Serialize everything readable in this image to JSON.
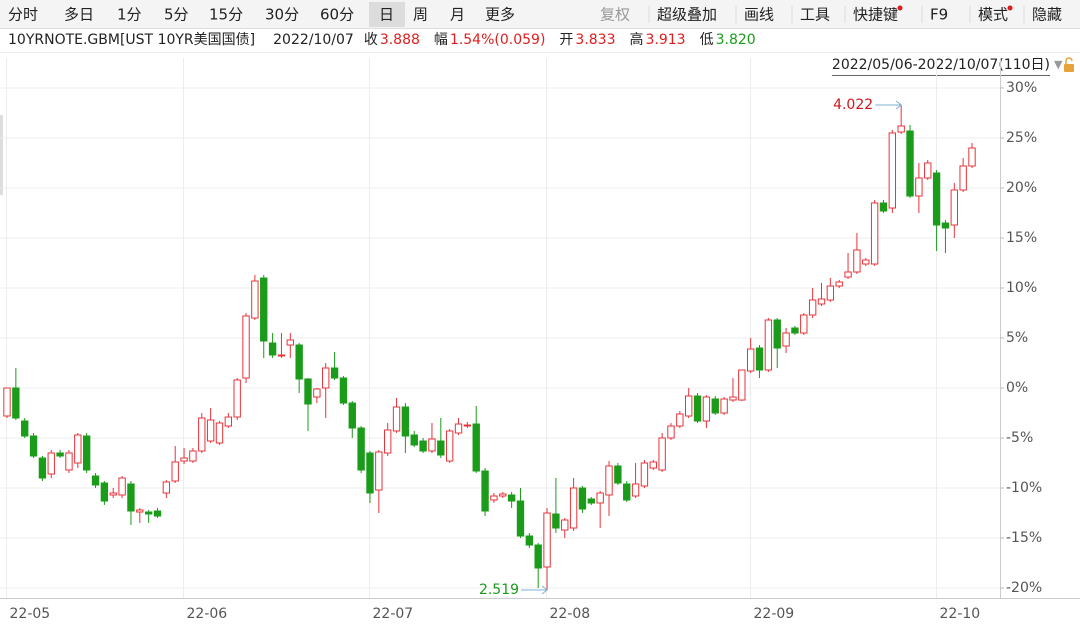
{
  "toolbar": {
    "periods": [
      "分时",
      "多日",
      "1分",
      "5分",
      "15分",
      "30分",
      "60分",
      "日",
      "周",
      "月",
      "更多"
    ],
    "active": 7,
    "tools": [
      {
        "label": "复权",
        "disabled": true
      },
      {
        "label": "超级叠加"
      },
      {
        "label": "画线"
      },
      {
        "label": "工具"
      },
      {
        "label": "快捷键",
        "dot": true
      },
      {
        "label": "F9"
      },
      {
        "label": "模式",
        "dot": true
      },
      {
        "label": "隐藏"
      }
    ]
  },
  "quote": {
    "symbol": "10YRNOTE.GBM[UST 10YR美国国债]",
    "date": "2022/10/07",
    "fields": [
      {
        "label": "收",
        "value": "3.888",
        "color": "#e01d1d"
      },
      {
        "label": "幅",
        "value": "1.54%(0.059)",
        "color": "#e01d1d"
      },
      {
        "label": "开",
        "value": "3.833",
        "color": "#e01d1d"
      },
      {
        "label": "高",
        "value": "3.913",
        "color": "#e01d1d"
      },
      {
        "label": "低",
        "value": "3.820",
        "color": "#1a9c1a"
      }
    ]
  },
  "range": "2022/05/06-2022/10/07(110日)",
  "chart_data": {
    "type": "candlestick",
    "up_color": "#e8333a",
    "down_color": "#1a9c1a",
    "grid": true,
    "ylim": [
      -21,
      31
    ],
    "yticks": [
      {
        "value": 30,
        "label": "30%"
      },
      {
        "value": 25,
        "label": "25%"
      },
      {
        "value": 20,
        "label": "20%"
      },
      {
        "value": 15,
        "label": "15%"
      },
      {
        "value": 10,
        "label": "10%"
      },
      {
        "value": 5,
        "label": "5%"
      },
      {
        "value": 0,
        "label": "0%"
      },
      {
        "value": -5,
        "label": "-5%"
      },
      {
        "value": -10,
        "label": "-10%"
      },
      {
        "value": -15,
        "label": "-15%"
      },
      {
        "value": -20,
        "label": "-20%"
      }
    ],
    "annotations": [
      {
        "text": "4.022",
        "at": "high",
        "color": "#d0161b"
      },
      {
        "text": "2.519",
        "at": "low",
        "color": "#1a9c1a"
      }
    ],
    "categories": [
      "22-05",
      null,
      null,
      null,
      null,
      null,
      null,
      null,
      null,
      null,
      null,
      null,
      null,
      null,
      null,
      null,
      null,
      null,
      null,
      null,
      "22-06",
      null,
      null,
      null,
      null,
      null,
      null,
      null,
      null,
      null,
      null,
      null,
      null,
      null,
      null,
      null,
      null,
      null,
      null,
      null,
      null,
      "22-07",
      null,
      null,
      null,
      null,
      null,
      null,
      null,
      null,
      null,
      null,
      null,
      null,
      null,
      null,
      null,
      null,
      null,
      null,
      null,
      "22-08",
      null,
      null,
      null,
      null,
      null,
      null,
      null,
      null,
      null,
      null,
      null,
      null,
      null,
      null,
      null,
      null,
      null,
      null,
      null,
      null,
      null,
      null,
      "22-09",
      null,
      null,
      null,
      null,
      null,
      null,
      null,
      null,
      null,
      null,
      null,
      null,
      null,
      null,
      null,
      null,
      null,
      null,
      null,
      null,
      "22-10",
      null,
      null,
      null,
      null
    ],
    "candles": [
      {
        "o": -2.8,
        "h": 0,
        "l": -3,
        "c": 0
      },
      {
        "o": 0,
        "h": 2,
        "l": -3.2,
        "c": -3
      },
      {
        "o": -3.3,
        "h": -3,
        "l": -5,
        "c": -4.8
      },
      {
        "o": -4.8,
        "h": -4.5,
        "l": -7,
        "c": -6.8
      },
      {
        "o": -7,
        "h": -6.8,
        "l": -9.3,
        "c": -9
      },
      {
        "o": -8.6,
        "h": -6.2,
        "l": -9,
        "c": -6.5
      },
      {
        "o": -6.5,
        "h": -6.2,
        "l": -7,
        "c": -6.8
      },
      {
        "o": -8.2,
        "h": -6.2,
        "l": -8.5,
        "c": -6.5
      },
      {
        "o": -7.5,
        "h": -4.5,
        "l": -8,
        "c": -4.7
      },
      {
        "o": -4.8,
        "h": -4.5,
        "l": -8.5,
        "c": -8.2
      },
      {
        "o": -8.8,
        "h": -8.5,
        "l": -10,
        "c": -9.7
      },
      {
        "o": -9.5,
        "h": -9.3,
        "l": -11.7,
        "c": -11.3
      },
      {
        "o": -10.7,
        "h": -10,
        "l": -11,
        "c": -10.5
      },
      {
        "o": -10.7,
        "h": -8.8,
        "l": -11,
        "c": -9
      },
      {
        "o": -9.6,
        "h": -9.3,
        "l": -13.7,
        "c": -12.3
      },
      {
        "o": -12.4,
        "h": -12,
        "l": -13.5,
        "c": -12.2
      },
      {
        "o": -12.4,
        "h": -12.2,
        "l": -13.5,
        "c": -12.6
      },
      {
        "o": -12.3,
        "h": -12,
        "l": -13,
        "c": -12.8
      },
      {
        "o": -10.5,
        "h": -9.2,
        "l": -11,
        "c": -9.4
      },
      {
        "o": -9.3,
        "h": -5.8,
        "l": -9.5,
        "c": -7.4
      },
      {
        "o": -7.3,
        "h": -6,
        "l": -7.6,
        "c": -7
      },
      {
        "o": -7.3,
        "h": -6,
        "l": -7.5,
        "c": -6.3
      },
      {
        "o": -6.3,
        "h": -2.5,
        "l": -6.5,
        "c": -3
      },
      {
        "o": -5.3,
        "h": -2,
        "l": -5.5,
        "c": -3.2
      },
      {
        "o": -5.5,
        "h": -3.3,
        "l": -5.7,
        "c": -3.5
      },
      {
        "o": -3.8,
        "h": -2.5,
        "l": -4,
        "c": -2.9
      },
      {
        "o": -2.9,
        "h": 1,
        "l": -3.2,
        "c": 0.8
      },
      {
        "o": 1,
        "h": 7.5,
        "l": 0.5,
        "c": 7.2
      },
      {
        "o": 7,
        "h": 11.3,
        "l": 6.8,
        "c": 10.7
      },
      {
        "o": 11,
        "h": 11.3,
        "l": 3,
        "c": 4.7
      },
      {
        "o": 4.5,
        "h": 5.5,
        "l": 3,
        "c": 3.3
      },
      {
        "o": 3.2,
        "h": 5.5,
        "l": 3,
        "c": 3.3
      },
      {
        "o": 4.3,
        "h": 5.5,
        "l": 3,
        "c": 4.8
      },
      {
        "o": 4.3,
        "h": 4.5,
        "l": -0.5,
        "c": 0.9
      },
      {
        "o": 0.9,
        "h": 1,
        "l": -4.3,
        "c": -1.6
      },
      {
        "o": -0.9,
        "h": 0,
        "l": -1.5,
        "c": -0.1
      },
      {
        "o": 0,
        "h": 2.5,
        "l": -3,
        "c": 2
      },
      {
        "o": 2,
        "h": 3.6,
        "l": 0.8,
        "c": 1
      },
      {
        "o": 1,
        "h": 1.2,
        "l": -1.7,
        "c": -1.5
      },
      {
        "o": -1.5,
        "h": -1.3,
        "l": -5,
        "c": -4
      },
      {
        "o": -4,
        "h": -3.8,
        "l": -8.5,
        "c": -8.2
      },
      {
        "o": -6.5,
        "h": -6.3,
        "l": -11.5,
        "c": -10.5
      },
      {
        "o": -10.2,
        "h": -6.2,
        "l": -12.5,
        "c": -6.4
      },
      {
        "o": -6.5,
        "h": -3.5,
        "l": -6.8,
        "c": -4.2
      },
      {
        "o": -4.3,
        "h": -1,
        "l": -4.5,
        "c": -1.9
      },
      {
        "o": -1.9,
        "h": -1.5,
        "l": -6.5,
        "c": -4.8
      },
      {
        "o": -4.7,
        "h": -4.3,
        "l": -5.9,
        "c": -5.7
      },
      {
        "o": -5.3,
        "h": -5,
        "l": -6.5,
        "c": -6.3
      },
      {
        "o": -6.3,
        "h": -3.5,
        "l": -6.5,
        "c": -5.1
      },
      {
        "o": -5.3,
        "h": -3,
        "l": -7,
        "c": -6.7
      },
      {
        "o": -7.3,
        "h": -4.1,
        "l": -7.5,
        "c": -4.3
      },
      {
        "o": -4.5,
        "h": -3,
        "l": -4.7,
        "c": -3.6
      },
      {
        "o": -3.7,
        "h": -3.4,
        "l": -4,
        "c": -3.7
      },
      {
        "o": -3.6,
        "h": -1.8,
        "l": -8.5,
        "c": -8.3
      },
      {
        "o": -8.3,
        "h": -8,
        "l": -12.8,
        "c": -12.3
      },
      {
        "o": -11.2,
        "h": -10.5,
        "l": -11.5,
        "c": -10.8
      },
      {
        "o": -10.8,
        "h": -10.4,
        "l": -11,
        "c": -10.6
      },
      {
        "o": -10.7,
        "h": -10.4,
        "l": -12,
        "c": -11.3
      },
      {
        "o": -11.3,
        "h": -10,
        "l": -15,
        "c": -14.8
      },
      {
        "o": -14.8,
        "h": -14.5,
        "l": -16,
        "c": -15.7
      },
      {
        "o": -15.7,
        "h": -15.5,
        "l": -20,
        "c": -18
      },
      {
        "o": -17.9,
        "h": -12,
        "l": -20.2,
        "c": -12.5
      },
      {
        "o": -12.6,
        "h": -9,
        "l": -14.5,
        "c": -14
      },
      {
        "o": -14.2,
        "h": -13,
        "l": -15,
        "c": -13.2
      },
      {
        "o": -14,
        "h": -9,
        "l": -14.3,
        "c": -10
      },
      {
        "o": -10,
        "h": -9.8,
        "l": -12.5,
        "c": -12.1
      },
      {
        "o": -11.1,
        "h": -10.9,
        "l": -11.7,
        "c": -11.5
      },
      {
        "o": -11.5,
        "h": -10.3,
        "l": -14,
        "c": -10.5
      },
      {
        "o": -10.7,
        "h": -7.3,
        "l": -12.8,
        "c": -7.8
      },
      {
        "o": -7.8,
        "h": -7.5,
        "l": -9.7,
        "c": -9.5
      },
      {
        "o": -9.6,
        "h": -9.3,
        "l": -11.4,
        "c": -11.2
      },
      {
        "o": -10.8,
        "h": -7.5,
        "l": -11,
        "c": -9.6
      },
      {
        "o": -9.8,
        "h": -7.2,
        "l": -10,
        "c": -7.5
      },
      {
        "o": -8,
        "h": -7.2,
        "l": -8.2,
        "c": -7.4
      },
      {
        "o": -8.2,
        "h": -4.5,
        "l": -8.4,
        "c": -5
      },
      {
        "o": -5,
        "h": -3.5,
        "l": -5.2,
        "c": -3.8
      },
      {
        "o": -3.8,
        "h": -2.3,
        "l": -4,
        "c": -2.6
      },
      {
        "o": -2.8,
        "h": 0,
        "l": -3,
        "c": -0.8
      },
      {
        "o": -0.8,
        "h": -0.5,
        "l": -3.5,
        "c": -3.3
      },
      {
        "o": -3.3,
        "h": -0.7,
        "l": -4,
        "c": -0.9
      },
      {
        "o": -1.1,
        "h": -0.8,
        "l": -2.7,
        "c": -2.5
      },
      {
        "o": -2.5,
        "h": -0.9,
        "l": -2.7,
        "c": -1.1
      },
      {
        "o": -1.2,
        "h": 1,
        "l": -1.4,
        "c": -0.9
      },
      {
        "o": -1.2,
        "h": 1.8,
        "l": -1.3,
        "c": 1.8
      },
      {
        "o": 1.7,
        "h": 5,
        "l": 1.5,
        "c": 3.9
      },
      {
        "o": 4,
        "h": 4.3,
        "l": 1,
        "c": 1.8
      },
      {
        "o": 1.8,
        "h": 7,
        "l": 1.6,
        "c": 6.8
      },
      {
        "o": 6.8,
        "h": 7,
        "l": 2,
        "c": 4
      },
      {
        "o": 4.2,
        "h": 6,
        "l": 3.5,
        "c": 5.5
      },
      {
        "o": 6,
        "h": 6.2,
        "l": 5.3,
        "c": 5.5
      },
      {
        "o": 5.5,
        "h": 7.5,
        "l": 5.3,
        "c": 7.3
      },
      {
        "o": 7.3,
        "h": 10,
        "l": 7,
        "c": 8.8
      },
      {
        "o": 8.4,
        "h": 10.5,
        "l": 8.2,
        "c": 8.9
      },
      {
        "o": 8.8,
        "h": 11,
        "l": 8.6,
        "c": 10.2
      },
      {
        "o": 10.2,
        "h": 10.8,
        "l": 10,
        "c": 10.6
      },
      {
        "o": 11.1,
        "h": 13.5,
        "l": 10.9,
        "c": 11.6
      },
      {
        "o": 11.6,
        "h": 15.5,
        "l": 11.4,
        "c": 13.8
      },
      {
        "o": 12.4,
        "h": 13,
        "l": 12.2,
        "c": 12.8
      },
      {
        "o": 12.4,
        "h": 18.8,
        "l": 12.2,
        "c": 18.5
      },
      {
        "o": 18.5,
        "h": 18.8,
        "l": 17.5,
        "c": 17.7
      },
      {
        "o": 18,
        "h": 25.8,
        "l": 17.5,
        "c": 25.5
      },
      {
        "o": 25.6,
        "h": 28.3,
        "l": 25.4,
        "c": 26.2
      },
      {
        "o": 25.7,
        "h": 26.3,
        "l": 19,
        "c": 19.2
      },
      {
        "o": 19.2,
        "h": 22.5,
        "l": 17.5,
        "c": 21
      },
      {
        "o": 21,
        "h": 22.8,
        "l": 20.8,
        "c": 22.5
      },
      {
        "o": 21.5,
        "h": 21.8,
        "l": 13.7,
        "c": 16.3
      },
      {
        "o": 16.5,
        "h": 16.8,
        "l": 13.5,
        "c": 16
      },
      {
        "o": 16.3,
        "h": 20.5,
        "l": 15,
        "c": 19.8
      },
      {
        "o": 19.8,
        "h": 23,
        "l": 19.6,
        "c": 22.2
      },
      {
        "o": 22.2,
        "h": 24.5,
        "l": 22,
        "c": 24
      }
    ]
  }
}
